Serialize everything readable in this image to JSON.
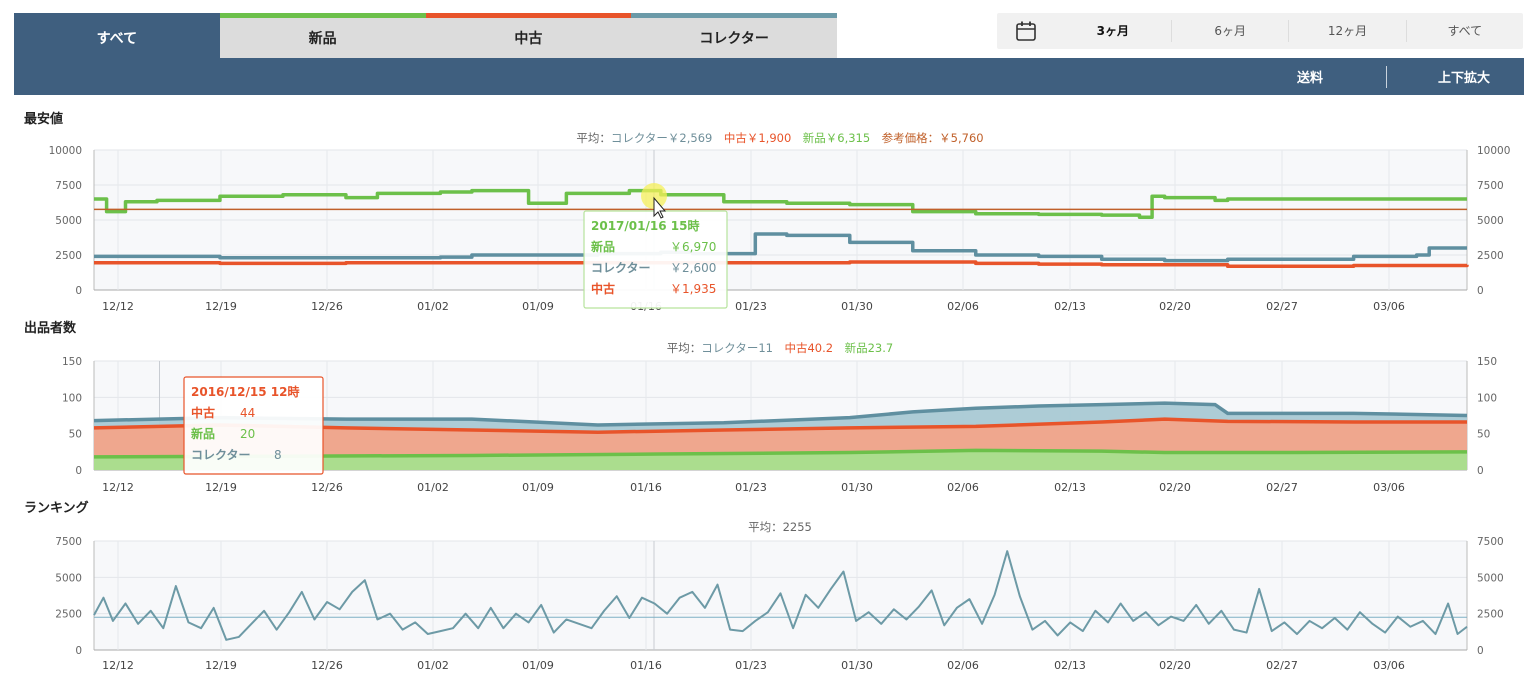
{
  "tabs": [
    {
      "label": "すべて",
      "color": "#3f5f7f",
      "active": true
    },
    {
      "label": "新品",
      "color": "#6cc04a",
      "active": false
    },
    {
      "label": "中古",
      "color": "#e8542a",
      "active": false
    },
    {
      "label": "コレクター",
      "color": "#6b9aa8",
      "active": false
    }
  ],
  "toolbar": {
    "shipping_label": "送料",
    "zoom_label": "上下拡大"
  },
  "range": {
    "icon": "calendar-icon",
    "options": [
      "3ヶ月",
      "6ヶ月",
      "12ヶ月",
      "すべて"
    ],
    "selected": "3ヶ月"
  },
  "dates": [
    "12/12",
    "12/19",
    "12/26",
    "01/02",
    "01/09",
    "01/16",
    "01/23",
    "01/30",
    "02/06",
    "02/13",
    "02/20",
    "02/27",
    "03/06"
  ],
  "colors": {
    "new": "#6cc04a",
    "used": "#e8542a",
    "collector": "#5f8fa0",
    "reference": "#c0602a"
  },
  "chart_data": [
    {
      "type": "line",
      "title": "最安値",
      "subtitle_prefix": "平均：",
      "averages": [
        {
          "text": "コレクター￥2,569",
          "color": "#6f8f9a"
        },
        {
          "text": "中古￥1,900",
          "color": "#e8542a"
        },
        {
          "text": "新品￥6,315",
          "color": "#6cc04a"
        },
        {
          "text": "参考価格：￥5,760",
          "color": "#c0602a"
        }
      ],
      "ylim": [
        0,
        10000
      ],
      "yticks": [
        "0",
        "2500",
        "5000",
        "7500",
        "10000"
      ],
      "xlabels": [
        "12/12",
        "12/19",
        "12/26",
        "01/02",
        "01/09",
        "01/16",
        "01/23",
        "01/30",
        "02/06",
        "02/13",
        "02/20",
        "02/27",
        "03/06"
      ],
      "series": [
        {
          "name": "新品",
          "color": "#6cc04a",
          "points": [
            [
              0,
              6500
            ],
            [
              0.2,
              5600
            ],
            [
              0.5,
              6300
            ],
            [
              1,
              6400
            ],
            [
              2,
              6700
            ],
            [
              3,
              6800
            ],
            [
              4,
              6600
            ],
            [
              4.5,
              6900
            ],
            [
              5.5,
              7000
            ],
            [
              6,
              7100
            ],
            [
              6.9,
              6200
            ],
            [
              7.5,
              6900
            ],
            [
              8.5,
              7100
            ],
            [
              9,
              6800
            ],
            [
              10,
              6300
            ],
            [
              11,
              6200
            ],
            [
              12,
              6100
            ],
            [
              13,
              5600
            ],
            [
              14,
              5450
            ],
            [
              15,
              5400
            ],
            [
              16,
              5350
            ],
            [
              16.6,
              5200
            ],
            [
              16.8,
              6700
            ],
            [
              17,
              6600
            ],
            [
              17.8,
              6400
            ],
            [
              18,
              6500
            ],
            [
              19,
              6500
            ],
            [
              20,
              6500
            ],
            [
              21,
              6500
            ],
            [
              21.8,
              6500
            ]
          ]
        },
        {
          "name": "中古",
          "color": "#e8542a",
          "points": [
            [
              0,
              1950
            ],
            [
              2,
              1900
            ],
            [
              4,
              1950
            ],
            [
              6,
              1950
            ],
            [
              8,
              1950
            ],
            [
              10,
              1950
            ],
            [
              12,
              2000
            ],
            [
              14,
              1900
            ],
            [
              15,
              1850
            ],
            [
              16,
              1800
            ],
            [
              17,
              1800
            ],
            [
              18,
              1700
            ],
            [
              20,
              1750
            ],
            [
              21.8,
              1800
            ]
          ]
        },
        {
          "name": "コレクター",
          "color": "#5f8fa0",
          "points": [
            [
              0,
              2400
            ],
            [
              2,
              2300
            ],
            [
              4,
              2300
            ],
            [
              5.5,
              2350
            ],
            [
              6,
              2500
            ],
            [
              8,
              2600
            ],
            [
              9,
              2700
            ],
            [
              9.5,
              2600
            ],
            [
              10,
              2600
            ],
            [
              10.5,
              4000
            ],
            [
              11,
              3900
            ],
            [
              12,
              3400
            ],
            [
              13,
              2800
            ],
            [
              14,
              2500
            ],
            [
              15,
              2400
            ],
            [
              16,
              2200
            ],
            [
              17,
              2100
            ],
            [
              18,
              2200
            ],
            [
              20,
              2400
            ],
            [
              21,
              2500
            ],
            [
              21.2,
              3000
            ],
            [
              21.8,
              3000
            ]
          ]
        },
        {
          "name": "参考価格",
          "color": "#c0602a",
          "points": [
            [
              0,
              5760
            ],
            [
              21.8,
              5760
            ]
          ]
        }
      ],
      "tooltip": {
        "date": "2017/01/16 15時",
        "rows": [
          {
            "label": "新品",
            "value": "￥6,970",
            "color": "#6cc04a"
          },
          {
            "label": "コレクター",
            "value": "￥2,600",
            "color": "#6f8f9a"
          },
          {
            "label": "中古",
            "value": "￥1,935",
            "color": "#e8542a"
          }
        ]
      }
    },
    {
      "type": "area",
      "title": "出品者数",
      "subtitle_prefix": "平均：",
      "averages": [
        {
          "text": "コレクター11",
          "color": "#6f8f9a"
        },
        {
          "text": "中古40.2",
          "color": "#e8542a"
        },
        {
          "text": "新品23.7",
          "color": "#6cc04a"
        }
      ],
      "ylim": [
        0,
        150
      ],
      "yticks": [
        "0",
        "50",
        "100",
        "150"
      ],
      "xlabels": [
        "12/12",
        "12/19",
        "12/26",
        "01/02",
        "01/09",
        "01/16",
        "01/23",
        "01/30",
        "02/06",
        "02/13",
        "02/20",
        "02/27",
        "03/06"
      ],
      "series": [
        {
          "name": "新品",
          "color": "#6cc04a",
          "points": [
            [
              0,
              18
            ],
            [
              3,
              19
            ],
            [
              6,
              20
            ],
            [
              9,
              22
            ],
            [
              12,
              24
            ],
            [
              14,
              27
            ],
            [
              16,
              26
            ],
            [
              17,
              24
            ],
            [
              19,
              24
            ],
            [
              21.8,
              25
            ]
          ]
        },
        {
          "name": "中古",
          "color": "#e8542a",
          "points": [
            [
              0,
              58
            ],
            [
              2,
              62
            ],
            [
              4,
              58
            ],
            [
              6,
              55
            ],
            [
              8,
              52
            ],
            [
              10,
              55
            ],
            [
              12,
              58
            ],
            [
              14,
              60
            ],
            [
              16,
              66
            ],
            [
              17,
              70
            ],
            [
              18,
              67
            ],
            [
              20,
              66
            ],
            [
              21.8,
              66
            ]
          ]
        },
        {
          "name": "コレクター",
          "color": "#5f8fa0",
          "points": [
            [
              0,
              68
            ],
            [
              2,
              72
            ],
            [
              4,
              70
            ],
            [
              6,
              70
            ],
            [
              8,
              62
            ],
            [
              10,
              65
            ],
            [
              12,
              72
            ],
            [
              13,
              80
            ],
            [
              14,
              85
            ],
            [
              15,
              88
            ],
            [
              16,
              90
            ],
            [
              17,
              92
            ],
            [
              17.8,
              90
            ],
            [
              18,
              78
            ],
            [
              20,
              78
            ],
            [
              21.8,
              75
            ]
          ]
        }
      ],
      "tooltip": {
        "date": "2016/12/15 12時",
        "rows": [
          {
            "label": "中古",
            "value": "44",
            "color": "#e8542a"
          },
          {
            "label": "新品",
            "value": "20",
            "color": "#6cc04a"
          },
          {
            "label": "コレクター",
            "value": "8",
            "color": "#6f8f9a"
          }
        ]
      }
    },
    {
      "type": "line",
      "title": "ランキング",
      "subtitle_prefix": "平均：",
      "averages": [
        {
          "text": "2255",
          "color": "#666"
        }
      ],
      "ylim": [
        0,
        7500
      ],
      "yticks": [
        "0",
        "2500",
        "5000",
        "7500"
      ],
      "xlabels": [
        "12/12",
        "12/19",
        "12/26",
        "01/02",
        "01/09",
        "01/16",
        "01/23",
        "01/30",
        "02/06",
        "02/13",
        "02/20",
        "02/27",
        "03/06"
      ],
      "average": 2255,
      "series": [
        {
          "name": "ランキング",
          "color": "#6d9aa6",
          "points": [
            [
              0,
              2400
            ],
            [
              0.3,
              3600
            ],
            [
              0.6,
              2000
            ],
            [
              1,
              3200
            ],
            [
              1.4,
              1800
            ],
            [
              1.8,
              2700
            ],
            [
              2.2,
              1500
            ],
            [
              2.6,
              4400
            ],
            [
              3,
              1900
            ],
            [
              3.4,
              1500
            ],
            [
              3.8,
              2900
            ],
            [
              4.2,
              700
            ],
            [
              4.6,
              900
            ],
            [
              5,
              1800
            ],
            [
              5.4,
              2700
            ],
            [
              5.8,
              1400
            ],
            [
              6.2,
              2600
            ],
            [
              6.6,
              4000
            ],
            [
              7,
              2100
            ],
            [
              7.4,
              3300
            ],
            [
              7.8,
              2800
            ],
            [
              8.2,
              4000
            ],
            [
              8.6,
              4800
            ],
            [
              9,
              2100
            ],
            [
              9.4,
              2500
            ],
            [
              9.8,
              1400
            ],
            [
              10.2,
              1900
            ],
            [
              10.6,
              1100
            ],
            [
              11,
              1300
            ],
            [
              11.4,
              1500
            ],
            [
              11.8,
              2500
            ],
            [
              12.2,
              1500
            ],
            [
              12.6,
              2900
            ],
            [
              13,
              1500
            ],
            [
              13.4,
              2500
            ],
            [
              13.8,
              1900
            ],
            [
              14.2,
              3100
            ],
            [
              14.6,
              1200
            ],
            [
              15,
              2100
            ],
            [
              15.4,
              1800
            ],
            [
              15.8,
              1500
            ],
            [
              16.2,
              2700
            ],
            [
              16.6,
              3700
            ],
            [
              17,
              2200
            ],
            [
              17.4,
              3600
            ],
            [
              17.8,
              3200
            ],
            [
              18.2,
              2500
            ],
            [
              18.6,
              3600
            ],
            [
              19,
              4000
            ],
            [
              19.4,
              2900
            ],
            [
              19.8,
              4500
            ],
            [
              20.2,
              1400
            ],
            [
              20.6,
              1300
            ],
            [
              21,
              2000
            ],
            [
              21.4,
              2600
            ],
            [
              21.8,
              3900
            ],
            [
              22.2,
              1500
            ],
            [
              22.6,
              3800
            ],
            [
              23,
              2900
            ],
            [
              23.4,
              4200
            ],
            [
              23.8,
              5400
            ],
            [
              24.2,
              2000
            ],
            [
              24.6,
              2600
            ],
            [
              25,
              1800
            ],
            [
              25.4,
              2800
            ],
            [
              25.8,
              2100
            ],
            [
              26.2,
              3000
            ],
            [
              26.6,
              4100
            ],
            [
              27,
              1700
            ],
            [
              27.4,
              2900
            ],
            [
              27.8,
              3500
            ],
            [
              28.2,
              1800
            ],
            [
              28.6,
              3800
            ],
            [
              29,
              6800
            ],
            [
              29.4,
              3700
            ],
            [
              29.8,
              1400
            ],
            [
              30.2,
              2000
            ],
            [
              30.6,
              1000
            ],
            [
              31,
              1900
            ],
            [
              31.4,
              1300
            ],
            [
              31.8,
              2700
            ],
            [
              32.2,
              1900
            ],
            [
              32.6,
              3200
            ],
            [
              33,
              2000
            ],
            [
              33.4,
              2600
            ],
            [
              33.8,
              1700
            ],
            [
              34.2,
              2300
            ],
            [
              34.6,
              2000
            ],
            [
              35,
              3100
            ],
            [
              35.4,
              1800
            ],
            [
              35.8,
              2700
            ],
            [
              36.2,
              1400
            ],
            [
              36.6,
              1200
            ],
            [
              37,
              4200
            ],
            [
              37.4,
              1300
            ],
            [
              37.8,
              1900
            ],
            [
              38.2,
              1100
            ],
            [
              38.6,
              2000
            ],
            [
              39,
              1500
            ],
            [
              39.4,
              2200
            ],
            [
              39.8,
              1400
            ],
            [
              40.2,
              2600
            ],
            [
              40.6,
              1800
            ],
            [
              41,
              1200
            ],
            [
              41.4,
              2300
            ],
            [
              41.8,
              1600
            ],
            [
              42.2,
              2000
            ],
            [
              42.6,
              1100
            ],
            [
              43,
              3200
            ],
            [
              43.3,
              1100
            ],
            [
              43.6,
              1600
            ]
          ]
        }
      ]
    }
  ]
}
